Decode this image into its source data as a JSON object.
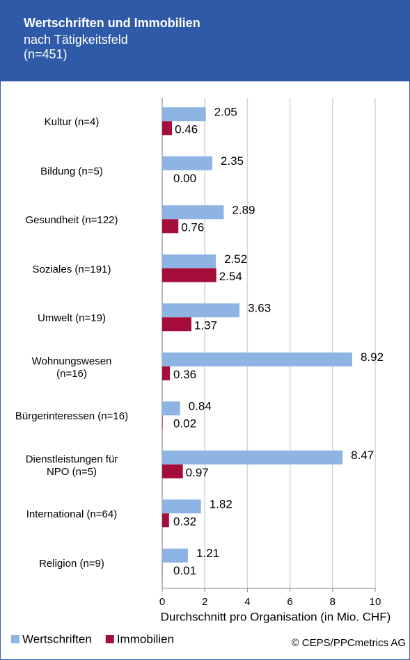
{
  "chart_data": {
    "type": "hbar",
    "title": "Wertschriften und Immobilien",
    "subtitle": "nach Tätigkeitsfeld\n(n=451)",
    "categories": [
      "Kultur (n=4)",
      "Bildung (n=5)",
      "Gesundheit (n=122)",
      "Soziales (n=191)",
      "Umwelt (n=19)",
      "Wohnungswesen\n(n=16)",
      "Bürgerinteressen (n=16)",
      "Dienstleistungen für\nNPO (n=5)",
      "International (n=64)",
      "Religion (n=9)"
    ],
    "series": [
      {
        "name": "Wertschriften",
        "color": "#8db4e2",
        "values": [
          2.05,
          2.35,
          2.89,
          2.52,
          3.63,
          8.92,
          0.84,
          8.47,
          1.82,
          1.21
        ],
        "value_labels": [
          "2.05",
          "2.35",
          "2.89",
          "2.52",
          "3.63",
          "8.92",
          "0.84",
          "8.47",
          "1.82",
          "1.21"
        ]
      },
      {
        "name": "Immobilien",
        "color": "#a50d3b",
        "values": [
          0.46,
          0.0,
          0.76,
          2.54,
          1.37,
          0.36,
          0.02,
          0.97,
          0.32,
          0.01
        ],
        "value_labels": [
          "0.46",
          "0.00",
          "0.76",
          "2.54",
          "1.37",
          "0.36",
          "0.02",
          "0.97",
          "0.32",
          "0.01"
        ]
      }
    ],
    "x_label": "Durchschnitt pro Organisation (in Mio. CHF)",
    "xlim": [
      0,
      10
    ],
    "xticks": [
      0,
      2,
      4,
      6,
      8,
      10
    ],
    "grid": true,
    "legend": "bottom-left",
    "source": "© CEPS/PPCmetrics AG"
  }
}
